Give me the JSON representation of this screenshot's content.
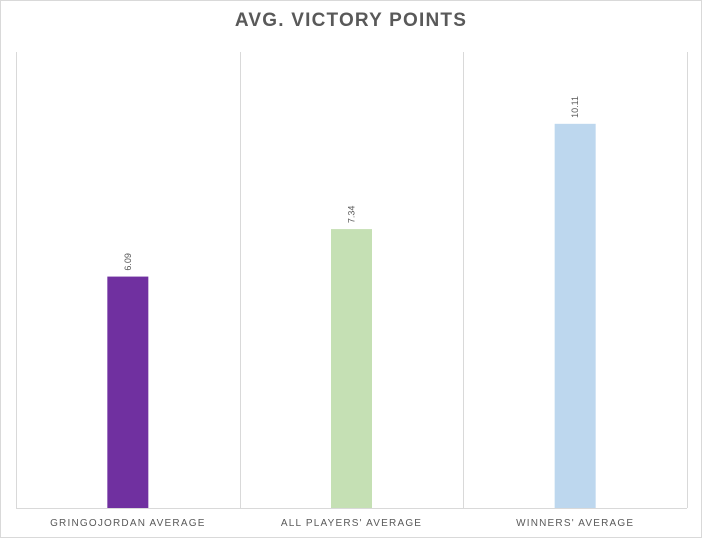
{
  "chart_data": {
    "type": "bar",
    "title": "AVG. VICTORY POINTS",
    "categories": [
      "GRINGOJORDAN AVERAGE",
      "ALL PLAYERS' AVERAGE",
      "WINNERS' AVERAGE"
    ],
    "values": [
      6.09,
      7.34,
      10.11
    ],
    "colors": [
      "#7030A0",
      "#C5E0B4",
      "#BDD7EE"
    ],
    "xlabel": "",
    "ylabel": "",
    "ylim": [
      0,
      12
    ],
    "grid": "vertical category separators",
    "data_labels": true,
    "legend": "none"
  }
}
